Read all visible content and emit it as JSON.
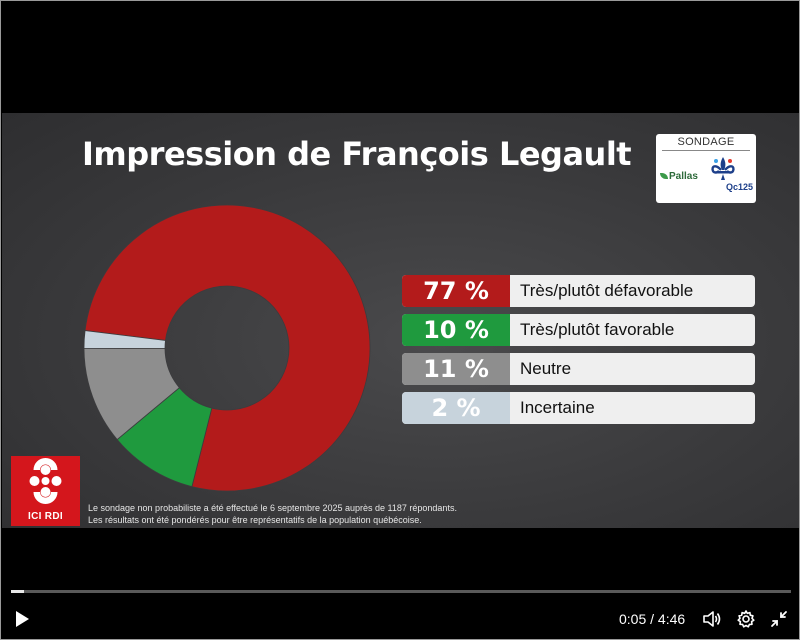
{
  "slide": {
    "title": "Impression de François Legault",
    "poll_badge": {
      "heading": "SONDAGE",
      "pallas": "Pallas",
      "qc": "Qc125"
    },
    "footnote_line1": "Le sondage non probabiliste a été effectué le 6 septembre 2025 auprès de 1187 répondants.",
    "footnote_line2": "Les résultats ont été pondérés pour être représentatifs de la population québécoise.",
    "broadcaster": "ICI RDI"
  },
  "chart_data": {
    "type": "pie",
    "categories": [
      "Très/plutôt défavorable",
      "Très/plutôt favorable",
      "Neutre",
      "Incertaine"
    ],
    "values": [
      77,
      10,
      11,
      2
    ],
    "value_labels": [
      "77 %",
      "10 %",
      "11 %",
      "2 %"
    ],
    "colors": [
      "#b31b1b",
      "#1f9a3e",
      "#8e8e8e",
      "#c7d3dc"
    ],
    "legend_placement": "right"
  },
  "player": {
    "current_time": "0:05",
    "separator": "/",
    "duration": "4:46",
    "progress": 0.017,
    "icons": [
      "play-icon",
      "volume-icon",
      "settings-gear-icon",
      "exit-fullscreen-icon"
    ]
  }
}
